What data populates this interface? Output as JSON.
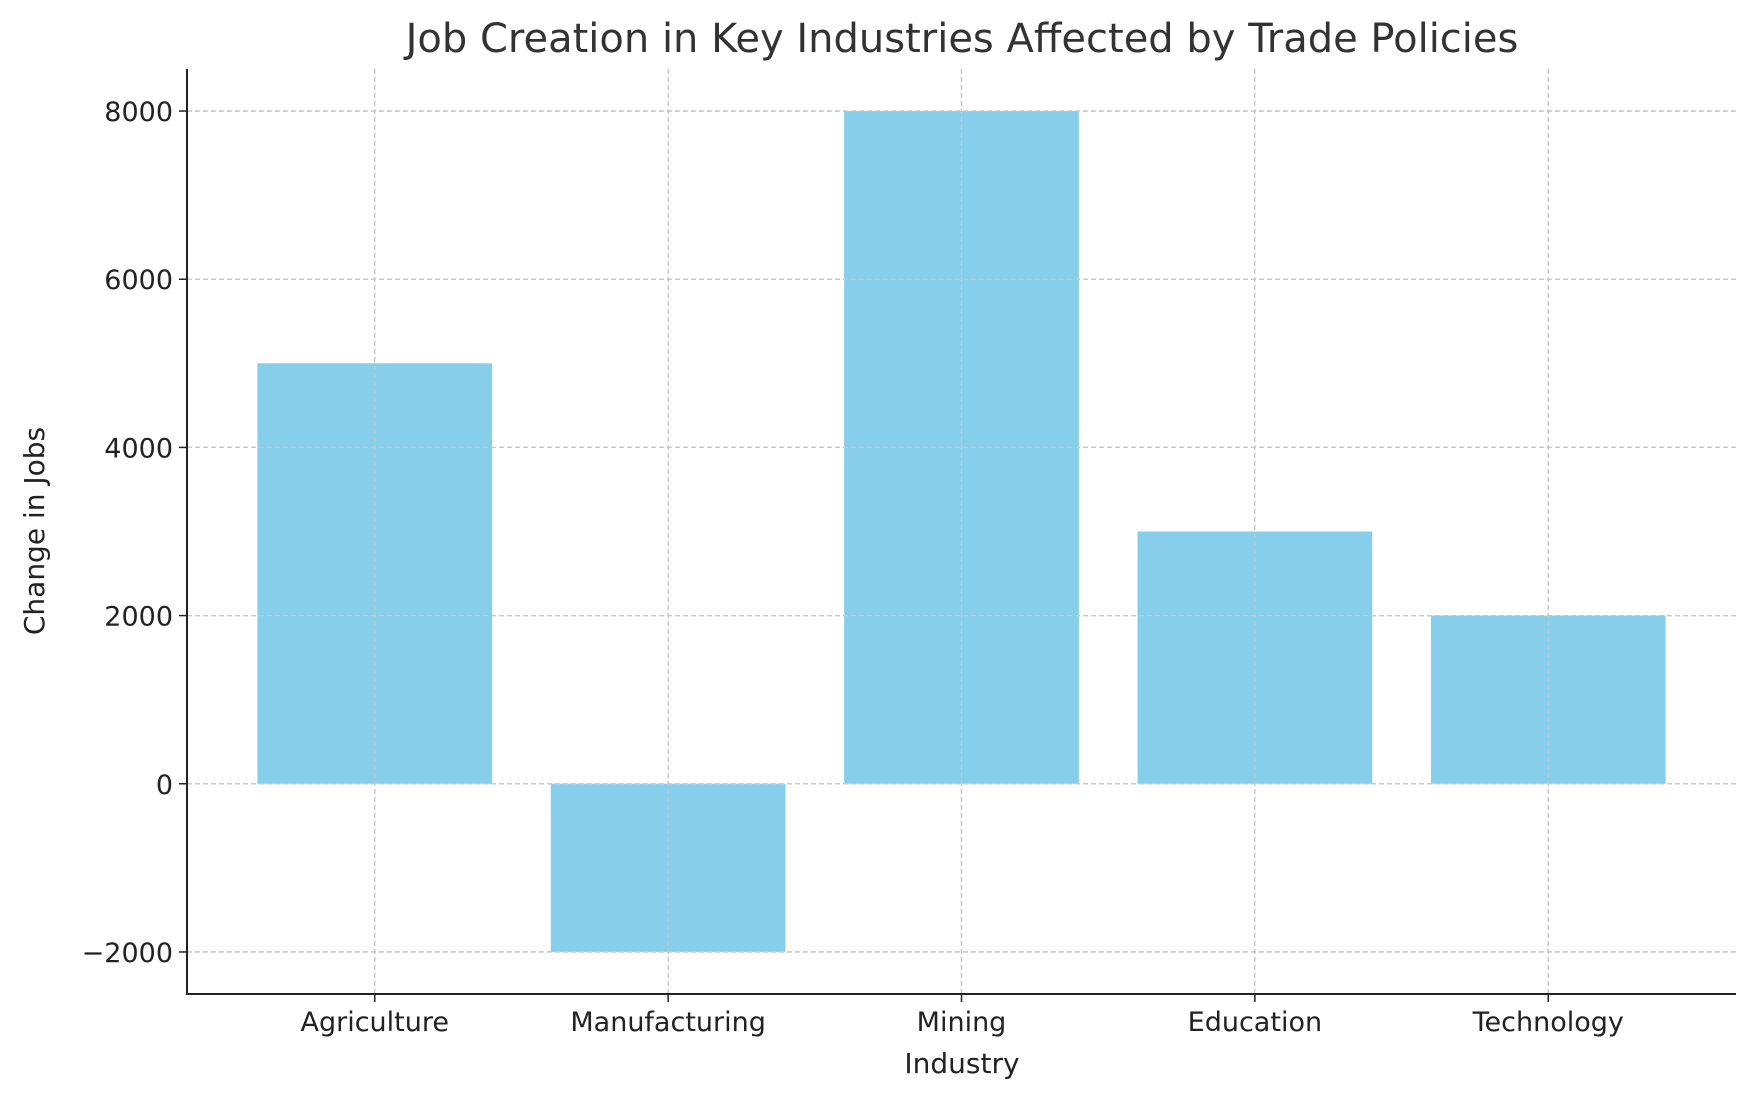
{
  "chart_data": {
    "type": "bar",
    "title": "Job Creation in Key Industries Affected by Trade Policies",
    "xlabel": "Industry",
    "ylabel": "Change in Jobs",
    "categories": [
      "Agriculture",
      "Manufacturing",
      "Mining",
      "Education",
      "Technology"
    ],
    "values": [
      5000,
      -2000,
      8000,
      3000,
      2000
    ],
    "ylim": [
      -2500,
      8500
    ],
    "yticks": [
      -2000,
      0,
      2000,
      4000,
      6000,
      8000
    ],
    "ytick_labels": [
      "−2000",
      "0",
      "2000",
      "4000",
      "6000",
      "8000"
    ],
    "grid": true,
    "bar_color": "#87CEEB"
  }
}
